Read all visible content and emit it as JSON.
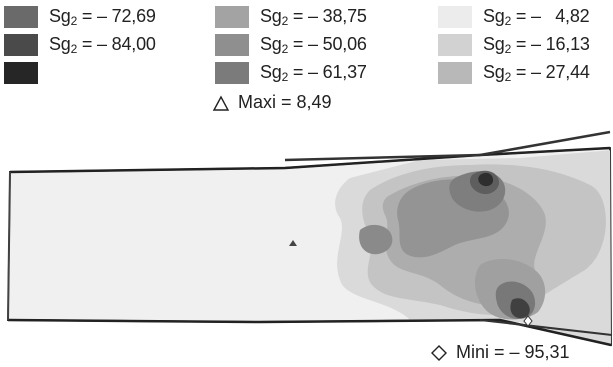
{
  "legend": {
    "items": [
      {
        "var": "Sg",
        "sub": "2",
        "value": "= – 72,69",
        "color": "#6a6a6a"
      },
      {
        "var": "Sg",
        "sub": "2",
        "value": "= – 84,00",
        "color": "#4a4a4a"
      },
      {
        "var": "",
        "sub": "",
        "value": "",
        "color": "#262626"
      },
      {
        "var": "Sg",
        "sub": "2",
        "value": "= – 38,75",
        "color": "#a3a3a3"
      },
      {
        "var": "Sg",
        "sub": "2",
        "value": "= – 50,06",
        "color": "#8f8f8f"
      },
      {
        "var": "Sg",
        "sub": "2",
        "value": "= – 61,37",
        "color": "#7b7b7b"
      },
      {
        "var": "Sg",
        "sub": "2",
        "value": "= –   4,82",
        "color": "#ececec"
      },
      {
        "var": "Sg",
        "sub": "2",
        "value": "= – 16,13",
        "color": "#d2d2d2"
      },
      {
        "var": "Sg",
        "sub": "2",
        "value": "= – 27,44",
        "color": "#b8b8b8"
      }
    ]
  },
  "maxi": {
    "label": "Maxi = 8,49"
  },
  "mini": {
    "label": "Mini = – 95,31"
  }
}
